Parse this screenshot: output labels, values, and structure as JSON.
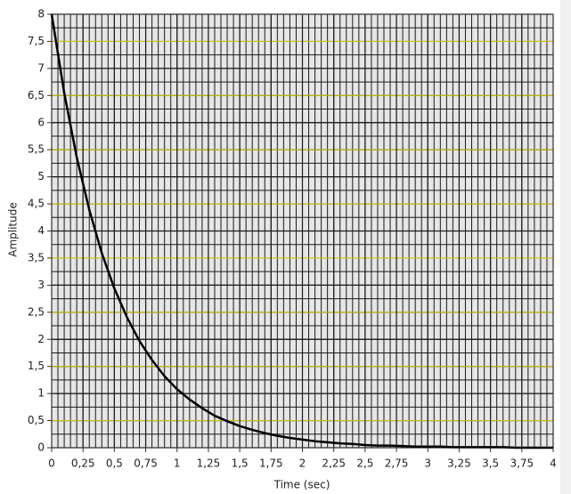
{
  "chart_data": {
    "type": "line",
    "xlabel": "Time (sec)",
    "ylabel": "Amplitude",
    "x": [
      0,
      0.1,
      0.2,
      0.3,
      0.4,
      0.5,
      0.6,
      0.7,
      0.8,
      0.9,
      1,
      1.1,
      1.2,
      1.3,
      1.4,
      1.5,
      1.6,
      1.7,
      1.8,
      1.9,
      2,
      2.1,
      2.2,
      2.3,
      2.4,
      2.5,
      2.6,
      2.7,
      2.8,
      2.9,
      3,
      3.1,
      3.2,
      3.3,
      3.4,
      3.5,
      3.6,
      3.7,
      3.8,
      3.9,
      4
    ],
    "values": [
      8,
      6.55,
      5.36,
      4.39,
      3.59,
      2.94,
      2.41,
      1.97,
      1.62,
      1.32,
      1.08,
      0.89,
      0.73,
      0.59,
      0.49,
      0.4,
      0.33,
      0.27,
      0.22,
      0.18,
      0.15,
      0.12,
      0.1,
      0.08,
      0.07,
      0.05,
      0.04,
      0.04,
      0.03,
      0.02,
      0.02,
      0.02,
      0.01,
      0.01,
      0.01,
      0.01,
      0.01,
      0,
      0,
      0,
      0
    ],
    "color": "#000000",
    "xlim": [
      0,
      4
    ],
    "xticks": [
      0,
      {
        "value": 0.25,
        "label": "0,25"
      },
      {
        "value": 0.5,
        "label": "0,5"
      },
      {
        "value": 0.75,
        "label": "0,75"
      },
      1,
      {
        "value": 1.25,
        "label": "1,25"
      },
      {
        "value": 1.5,
        "label": "1,5"
      },
      {
        "value": 1.75,
        "label": "1,75"
      },
      2,
      {
        "value": 2.25,
        "label": "2,25"
      },
      {
        "value": 2.5,
        "label": "2,5"
      },
      {
        "value": 2.75,
        "label": "2,75"
      },
      3,
      {
        "value": 3.25,
        "label": "3,25"
      },
      {
        "value": 3.5,
        "label": "3,5"
      },
      {
        "value": 3.75,
        "label": "3,75"
      },
      4
    ],
    "ylim": [
      0,
      8
    ],
    "yticks": [
      0,
      {
        "value": 0.5,
        "label": "0,5"
      },
      1,
      {
        "value": 1.5,
        "label": "1,5"
      },
      2,
      {
        "value": 2.5,
        "label": "2,5"
      },
      3,
      {
        "value": 3.5,
        "label": "3,5"
      },
      4,
      {
        "value": 4.5,
        "label": "4,5"
      },
      5,
      {
        "value": 5.5,
        "label": "5,5"
      },
      6,
      {
        "value": 6.5,
        "label": "6,5"
      },
      7,
      {
        "value": 7.5,
        "label": "7,5"
      },
      8
    ],
    "grid": true,
    "minor_grid": {
      "x": 0.05,
      "y": 0.25
    },
    "grid_color": "#1a1a1a",
    "half_grid_color": "#c8c000",
    "plot_background": "#e6e6e6"
  }
}
